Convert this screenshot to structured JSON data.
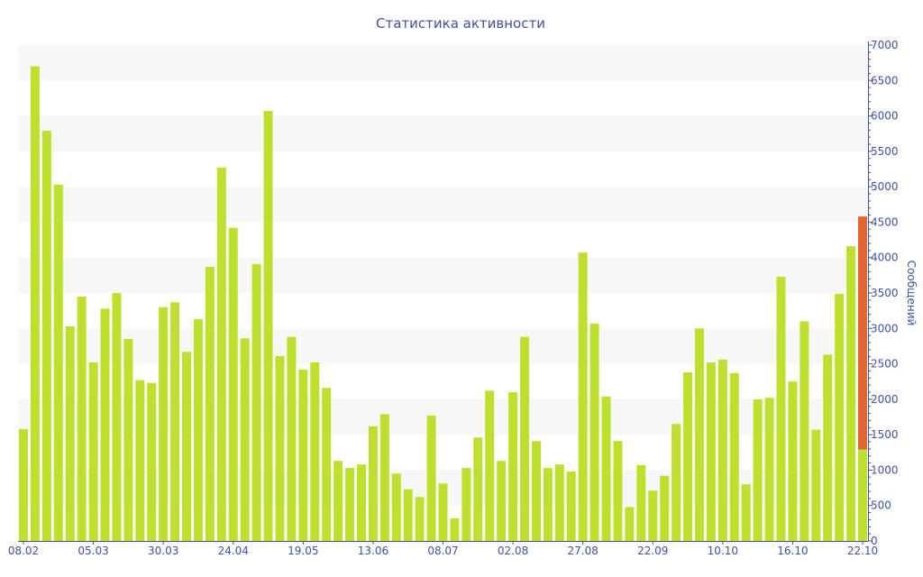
{
  "chart_data": {
    "type": "bar",
    "stacked": true,
    "title": "Статистика активности",
    "xlabel": "",
    "ylabel": "Сообщений",
    "ylim": [
      0,
      7000
    ],
    "yticks": [
      0,
      500,
      1000,
      1500,
      2000,
      2500,
      3000,
      3500,
      4000,
      4500,
      5000,
      5500,
      6000,
      6500,
      7000
    ],
    "y_axis_position": "right",
    "grid": "alternating horizontal bands",
    "x_tick_labels": [
      "08.02",
      "05.03",
      "30.03",
      "24.04",
      "19.05",
      "13.06",
      "08.07",
      "02.08",
      "27.08",
      "22.09",
      "10.10",
      "16.10",
      "22.10"
    ],
    "x_tick_every": 6,
    "colors": {
      "primary": "#bde02f",
      "secondary": "#e0662e",
      "text": "#3f51a0",
      "band": "#f7f7f7"
    },
    "series": [
      {
        "values": [
          1580,
          6700,
          5790,
          5030,
          3030,
          3450,
          2520,
          3280,
          3500,
          2850,
          2270,
          2230,
          3300,
          3370,
          2670,
          3130,
          3870,
          5270,
          4420,
          2860,
          3910,
          6070,
          2610,
          2880,
          2420,
          2520,
          2160,
          1130,
          1030,
          1080,
          1620,
          1790,
          950,
          730,
          620,
          1770,
          810,
          320,
          1030,
          1460,
          2120,
          1130,
          2100,
          2880,
          1410,
          1030,
          1080,
          980,
          4070,
          3070,
          2040,
          1410,
          480,
          1070,
          710,
          920,
          1650,
          2380,
          3000,
          2520,
          2560,
          2370,
          800,
          2000,
          2020,
          3730,
          2250,
          3100,
          1570,
          2630,
          3490,
          4160,
          1290
        ]
      },
      {
        "values": [
          0,
          0,
          0,
          0,
          0,
          0,
          0,
          0,
          0,
          0,
          0,
          0,
          0,
          0,
          0,
          0,
          0,
          0,
          0,
          0,
          0,
          0,
          0,
          0,
          0,
          0,
          0,
          0,
          0,
          0,
          0,
          0,
          0,
          0,
          0,
          0,
          0,
          0,
          0,
          0,
          0,
          0,
          0,
          0,
          0,
          0,
          0,
          0,
          0,
          0,
          0,
          0,
          0,
          0,
          0,
          0,
          0,
          0,
          0,
          0,
          0,
          0,
          0,
          0,
          0,
          0,
          0,
          0,
          0,
          0,
          0,
          0,
          3290
        ]
      }
    ]
  }
}
